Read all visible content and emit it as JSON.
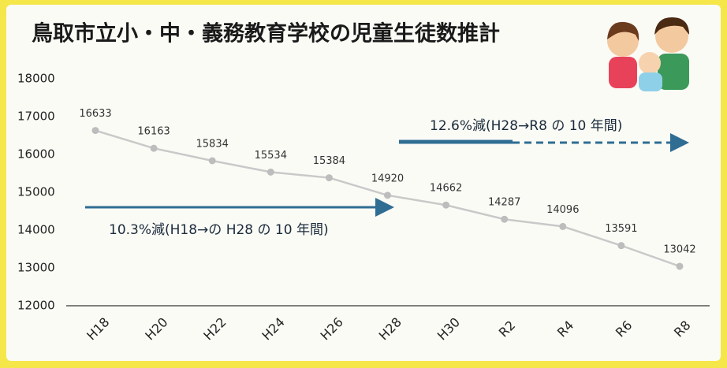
{
  "chart_data": {
    "type": "line",
    "title": "鳥取市立小・中・義務教育学校の児童生徒数推計",
    "categories": [
      "H18",
      "H20",
      "H22",
      "H24",
      "H26",
      "H28",
      "H30",
      "R2",
      "R4",
      "R6",
      "R8"
    ],
    "values": [
      16633,
      16163,
      15834,
      15534,
      15384,
      14920,
      14662,
      14287,
      14096,
      13591,
      13042
    ],
    "color": "#c9c9c9",
    "ylim": [
      12000,
      18000
    ],
    "yticks": [
      12000,
      13000,
      14000,
      15000,
      16000,
      17000,
      18000
    ],
    "grid": false,
    "annotations": [
      "12.6%減(H28→R8 の 10 年間)",
      "10.3%減(H18→の H28 の 10 年間)"
    ]
  }
}
